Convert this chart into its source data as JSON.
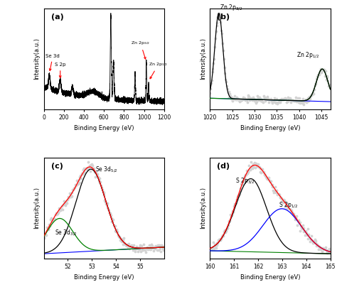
{
  "fig_width": 4.74,
  "fig_height": 4.04,
  "dpi": 100,
  "panel_labels": [
    "(a)",
    "(b)",
    "(c)",
    "(d)"
  ],
  "panel_a": {
    "xlabel": "Binding Energy (eV)",
    "ylabel": "Intensity(a.u.)",
    "xlim": [
      0,
      1200
    ],
    "xticks": [
      0,
      200,
      400,
      600,
      800,
      1000,
      1200
    ]
  },
  "panel_b": {
    "xlabel": "Binding Energy (eV)",
    "ylabel": "Intensity(a.u.)",
    "xlim": [
      1020,
      1047
    ],
    "xticks": [
      1020,
      1025,
      1030,
      1035,
      1040,
      1045
    ]
  },
  "panel_c": {
    "xlabel": "Binding Energy (eV)",
    "ylabel": "Intensity(a.u.)",
    "xlim": [
      51,
      56
    ],
    "xticks": [
      52,
      53,
      54,
      55
    ]
  },
  "panel_d": {
    "xlabel": "Binding Energy (eV)",
    "ylabel": "Intensity(a.u.)",
    "xlim": [
      160,
      165
    ],
    "xticks": [
      160,
      161,
      162,
      163,
      164,
      165
    ]
  }
}
